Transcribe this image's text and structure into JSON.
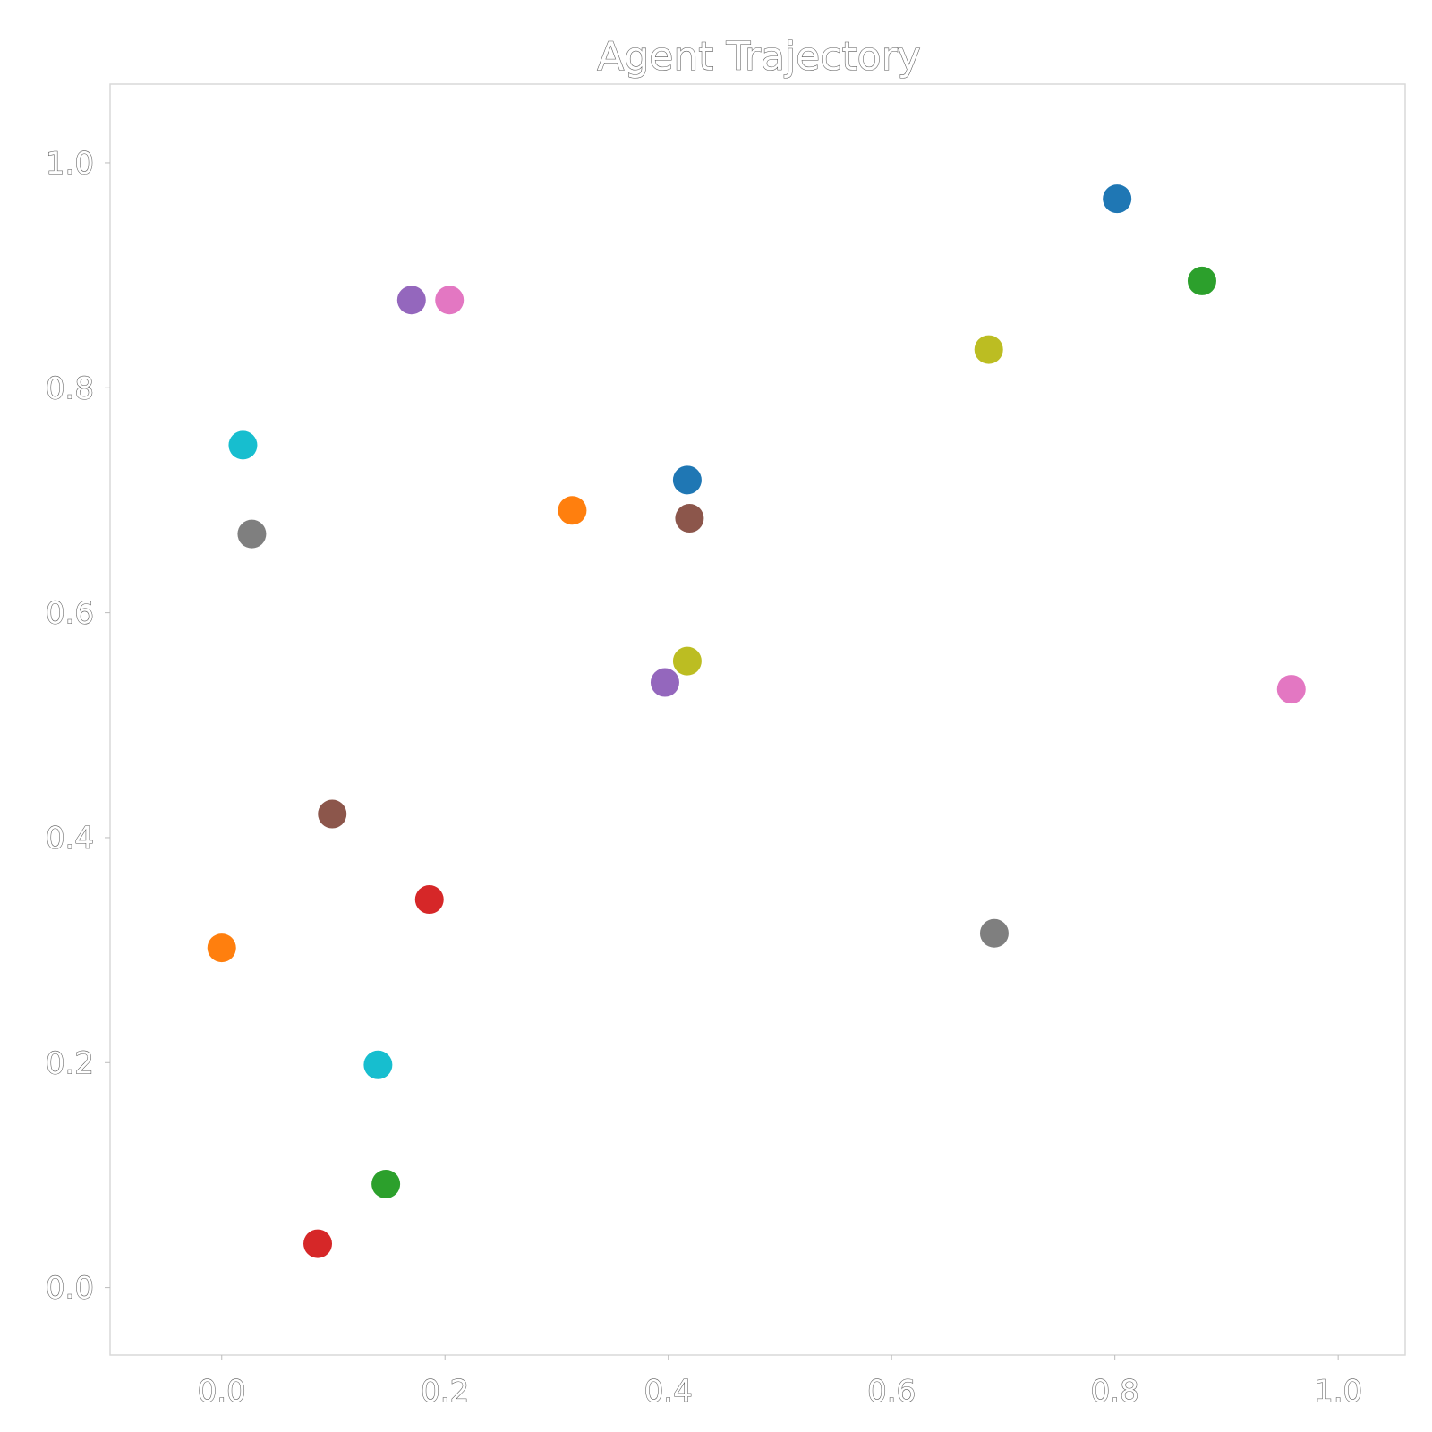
{
  "chart_data": {
    "type": "scatter",
    "title": "Agent Trajectory",
    "xlabel": "",
    "ylabel": "",
    "xlim": [
      -0.1,
      1.06
    ],
    "ylim": [
      -0.06,
      1.07
    ],
    "grid": false,
    "legend": "none",
    "x_ticks": [
      "0.0",
      "0.2",
      "0.4",
      "0.6",
      "0.8",
      "1.0"
    ],
    "x_tick_values": [
      0.0,
      0.2,
      0.4,
      0.6,
      0.8,
      1.0
    ],
    "y_ticks": [
      "0.0",
      "0.2",
      "0.4",
      "0.6",
      "0.8",
      "1.0"
    ],
    "y_tick_values": [
      0.0,
      0.2,
      0.4,
      0.6,
      0.8,
      1.0
    ],
    "series": [
      {
        "color": "#1f77b4",
        "points": [
          {
            "x": 0.417,
            "y": 0.718
          },
          {
            "x": 0.802,
            "y": 0.968
          }
        ]
      },
      {
        "color": "#ff7f0e",
        "points": [
          {
            "x": 0.0,
            "y": 0.302
          },
          {
            "x": 0.314,
            "y": 0.691
          }
        ]
      },
      {
        "color": "#2ca02c",
        "points": [
          {
            "x": 0.147,
            "y": 0.092
          },
          {
            "x": 0.878,
            "y": 0.895
          }
        ]
      },
      {
        "color": "#d62728",
        "points": [
          {
            "x": 0.086,
            "y": 0.039
          },
          {
            "x": 0.186,
            "y": 0.345
          }
        ]
      },
      {
        "color": "#9467bd",
        "points": [
          {
            "x": 0.17,
            "y": 0.878
          },
          {
            "x": 0.397,
            "y": 0.538
          }
        ]
      },
      {
        "color": "#e377c2",
        "points": [
          {
            "x": 0.204,
            "y": 0.878
          },
          {
            "x": 0.958,
            "y": 0.532
          }
        ]
      },
      {
        "color": "#8c564b",
        "points": [
          {
            "x": 0.099,
            "y": 0.421
          },
          {
            "x": 0.419,
            "y": 0.684
          }
        ]
      },
      {
        "color": "#7f7f7f",
        "points": [
          {
            "x": 0.027,
            "y": 0.67
          },
          {
            "x": 0.692,
            "y": 0.315
          }
        ]
      },
      {
        "color": "#bcbd22",
        "points": [
          {
            "x": 0.417,
            "y": 0.557
          },
          {
            "x": 0.687,
            "y": 0.834
          }
        ]
      },
      {
        "color": "#17becf",
        "points": [
          {
            "x": 0.019,
            "y": 0.749
          },
          {
            "x": 0.14,
            "y": 0.198
          }
        ]
      }
    ]
  }
}
